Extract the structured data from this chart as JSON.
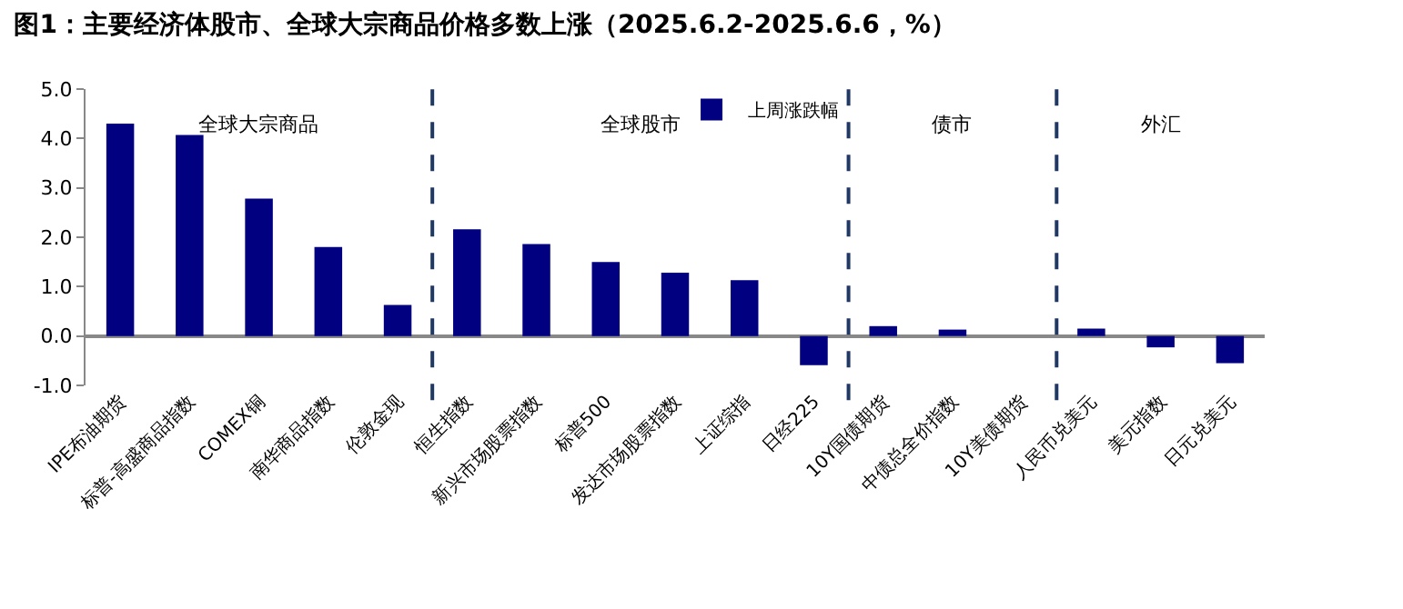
{
  "chart_data": {
    "type": "bar",
    "title": "图1：主要经济体股市、全球大宗商品价格多数上涨（2025.6.2-2025.6.6，%）",
    "categories": [
      "IPE布油期货",
      "标普-高盛商品指数",
      "COMEX铜",
      "南华商品指数",
      "伦敦金现",
      "恒生指数",
      "新兴市场股票指数",
      "标普500",
      "发达市场股票指数",
      "上证综指",
      "日经225",
      "10Y国债期货",
      "中债总全价指数",
      "10Y美债期货",
      "人民币兑美元",
      "美元指数",
      "日元兑美元"
    ],
    "series": [
      {
        "name": "上周涨跌幅",
        "color": "#000080",
        "values": [
          4.3,
          4.07,
          2.78,
          1.8,
          0.63,
          2.16,
          1.86,
          1.5,
          1.28,
          1.13,
          -0.59,
          0.2,
          0.13,
          0.0,
          0.15,
          -0.23,
          -0.55
        ]
      }
    ],
    "ylim": [
      -1,
      5
    ],
    "yticks": [
      {
        "value": -1,
        "label": "-1.0"
      },
      {
        "value": 0,
        "label": "0.0"
      },
      {
        "value": 1,
        "label": "1.0"
      },
      {
        "value": 2,
        "label": "2.0"
      },
      {
        "value": 3,
        "label": "3.0"
      },
      {
        "value": 4,
        "label": "4.0"
      },
      {
        "value": 5,
        "label": "5.0"
      }
    ],
    "annotations": [
      "全球大宗商品",
      "全球股市",
      "债市",
      "外汇"
    ],
    "legend": "top"
  }
}
